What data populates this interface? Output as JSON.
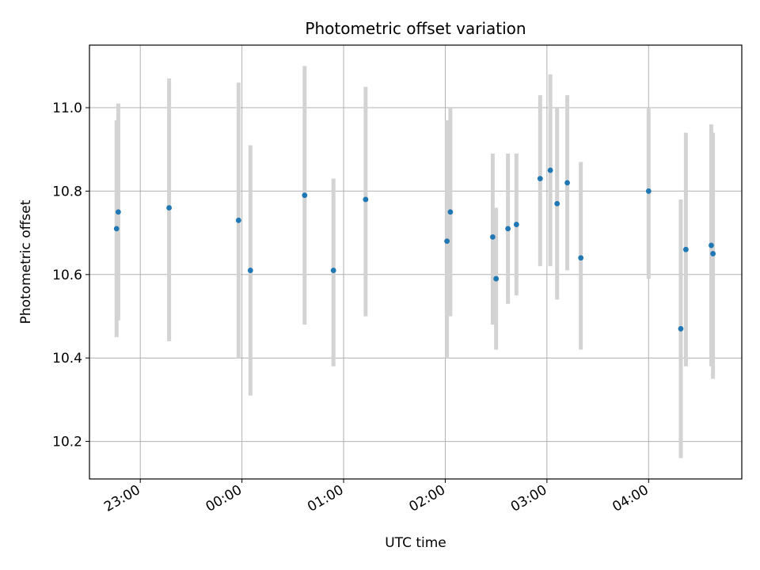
{
  "chart_data": {
    "type": "scatter",
    "title": "Photometric offset variation",
    "xlabel": "UTC time",
    "ylabel": "Photometric offset",
    "x_axis": {
      "kind": "time",
      "start": "22:30",
      "end": "04:55",
      "ticks": [
        "23:00",
        "00:00",
        "01:00",
        "02:00",
        "03:00",
        "04:00"
      ],
      "tick_labels": [
        "23:00",
        "00:00",
        "01:00",
        "02:00",
        "03:00",
        "04:00"
      ]
    },
    "y_axis": {
      "ylim": [
        10.11,
        11.15
      ],
      "ticks": [
        10.2,
        10.4,
        10.6,
        10.8,
        11.0
      ],
      "tick_labels": [
        "10.2",
        "10.4",
        "10.6",
        "10.8",
        "11.0"
      ]
    },
    "grid": true,
    "colors": {
      "point": "#1f77b4",
      "errorbar": "#d3d3d3",
      "grid": "#b0b0b0",
      "axes": "#000000"
    },
    "points": [
      {
        "time": "22:46",
        "y": 10.71,
        "lower": 10.45,
        "upper": 10.97
      },
      {
        "time": "22:47",
        "y": 10.75,
        "lower": 10.49,
        "upper": 11.01
      },
      {
        "time": "23:17",
        "y": 10.76,
        "lower": 10.44,
        "upper": 11.07
      },
      {
        "time": "23:58",
        "y": 10.73,
        "lower": 10.4,
        "upper": 11.06
      },
      {
        "time": "00:05",
        "y": 10.61,
        "lower": 10.31,
        "upper": 10.91
      },
      {
        "time": "00:37",
        "y": 10.79,
        "lower": 10.48,
        "upper": 11.1
      },
      {
        "time": "00:54",
        "y": 10.61,
        "lower": 10.38,
        "upper": 10.83
      },
      {
        "time": "01:13",
        "y": 10.78,
        "lower": 10.5,
        "upper": 11.05
      },
      {
        "time": "02:01",
        "y": 10.68,
        "lower": 10.4,
        "upper": 10.97
      },
      {
        "time": "02:03",
        "y": 10.75,
        "lower": 10.5,
        "upper": 11.0
      },
      {
        "time": "02:28",
        "y": 10.69,
        "lower": 10.48,
        "upper": 10.89
      },
      {
        "time": "02:30",
        "y": 10.59,
        "lower": 10.42,
        "upper": 10.76
      },
      {
        "time": "02:37",
        "y": 10.71,
        "lower": 10.53,
        "upper": 10.89
      },
      {
        "time": "02:42",
        "y": 10.72,
        "lower": 10.55,
        "upper": 10.89
      },
      {
        "time": "02:56",
        "y": 10.83,
        "lower": 10.62,
        "upper": 11.03
      },
      {
        "time": "03:02",
        "y": 10.85,
        "lower": 10.62,
        "upper": 11.08
      },
      {
        "time": "03:06",
        "y": 10.77,
        "lower": 10.54,
        "upper": 11.0
      },
      {
        "time": "03:12",
        "y": 10.82,
        "lower": 10.61,
        "upper": 11.03
      },
      {
        "time": "03:20",
        "y": 10.64,
        "lower": 10.42,
        "upper": 10.87
      },
      {
        "time": "04:00",
        "y": 10.8,
        "lower": 10.59,
        "upper": 11.0
      },
      {
        "time": "04:19",
        "y": 10.47,
        "lower": 10.16,
        "upper": 10.78
      },
      {
        "time": "04:22",
        "y": 10.66,
        "lower": 10.38,
        "upper": 10.94
      },
      {
        "time": "04:37",
        "y": 10.67,
        "lower": 10.38,
        "upper": 10.96
      },
      {
        "time": "04:38",
        "y": 10.65,
        "lower": 10.35,
        "upper": 10.94
      }
    ]
  }
}
